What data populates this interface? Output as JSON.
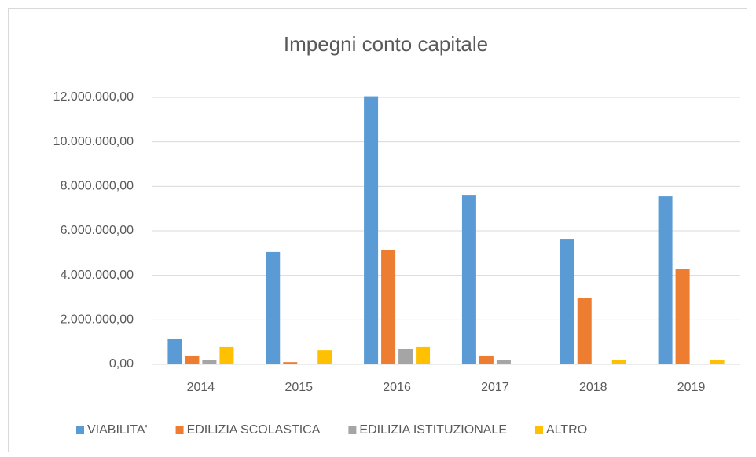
{
  "chart_data": {
    "type": "bar",
    "title": "Impegni conto capitale",
    "categories": [
      "2014",
      "2015",
      "2016",
      "2017",
      "2018",
      "2019"
    ],
    "series": [
      {
        "name": "VIABILITA'",
        "color": "#5b9bd5",
        "values": [
          1130000,
          5050000,
          12050000,
          7620000,
          5610000,
          7550000
        ]
      },
      {
        "name": "EDILIZIA SCOLASTICA",
        "color": "#ed7d31",
        "values": [
          390000,
          100000,
          5120000,
          390000,
          3000000,
          4270000
        ]
      },
      {
        "name": "EDILIZIA ISTITUZIONALE",
        "color": "#a5a5a5",
        "values": [
          180000,
          0,
          700000,
          180000,
          0,
          0
        ]
      },
      {
        "name": "ALTRO",
        "color": "#ffc000",
        "values": [
          780000,
          630000,
          780000,
          0,
          180000,
          210000
        ]
      }
    ],
    "ylim": [
      0,
      12000000
    ],
    "yticks": [
      {
        "value": 0,
        "label": "0,00"
      },
      {
        "value": 2000000,
        "label": "2.000.000,00"
      },
      {
        "value": 4000000,
        "label": "4.000.000,00"
      },
      {
        "value": 6000000,
        "label": "6.000.000,00"
      },
      {
        "value": 8000000,
        "label": "8.000.000,00"
      },
      {
        "value": 10000000,
        "label": "10.000.000,00"
      },
      {
        "value": 12000000,
        "label": "12.000.000,00"
      }
    ],
    "grid": true,
    "legend": "bottom"
  }
}
